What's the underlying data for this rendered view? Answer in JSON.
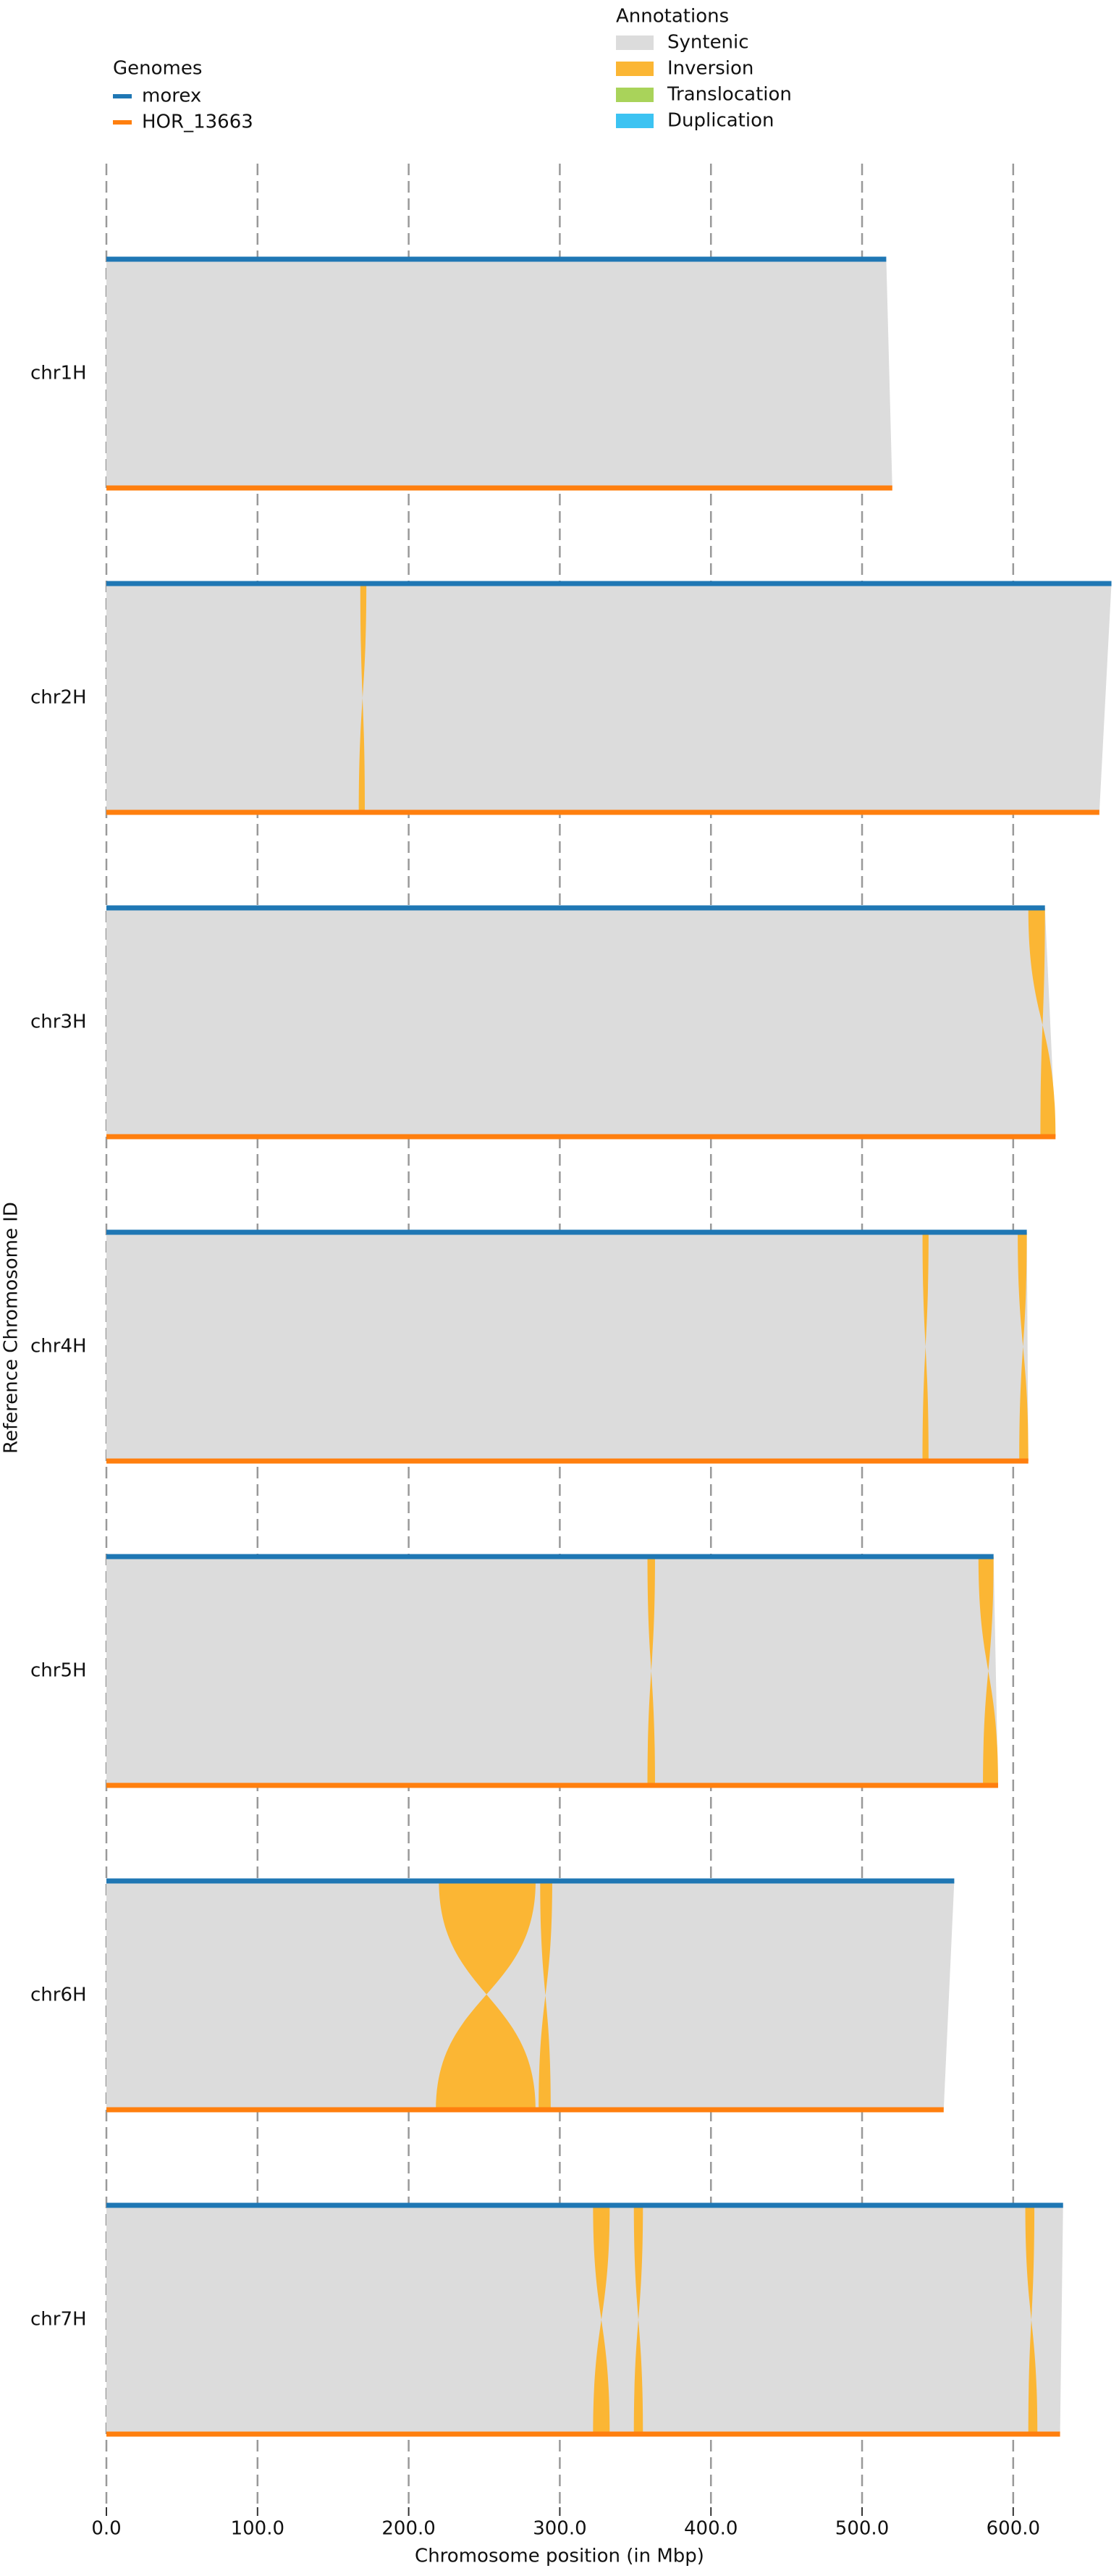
{
  "chart_data": {
    "type": "synteny",
    "xlabel": "Chromosome position (in Mbp)",
    "ylabel": "Reference Chromosome ID",
    "xlim": [
      0,
      670
    ],
    "xticks": [
      {
        "value": 0,
        "label": "0.0"
      },
      {
        "value": 100,
        "label": "100.0"
      },
      {
        "value": 200,
        "label": "200.0"
      },
      {
        "value": 300,
        "label": "300.0"
      },
      {
        "value": 400,
        "label": "400.0"
      },
      {
        "value": 500,
        "label": "500.0"
      },
      {
        "value": 600,
        "label": "600.0"
      }
    ],
    "grid": true,
    "genomes_title": "Genomes",
    "genomes": [
      {
        "name": "morex",
        "color": "#1f77b4"
      },
      {
        "name": "HOR_13663",
        "color": "#ff7f0e"
      }
    ],
    "annotations_title": "Annotations",
    "annotations": [
      {
        "name": "Syntenic",
        "color": "#dcdcdc"
      },
      {
        "name": "Inversion",
        "color": "#fbb634"
      },
      {
        "name": "Translocation",
        "color": "#a9d35a"
      },
      {
        "name": "Duplication",
        "color": "#3cc3f2"
      }
    ],
    "chromosomes": [
      {
        "name": "chr1H",
        "ref_length": 516,
        "qry_length": 520,
        "inversions": []
      },
      {
        "name": "chr2H",
        "ref_length": 665,
        "qry_length": 657,
        "inversions": [
          [
            168,
            172,
            167,
            171
          ]
        ]
      },
      {
        "name": "chr3H",
        "ref_length": 621,
        "qry_length": 628,
        "inversions": [
          [
            610,
            621,
            618,
            628
          ]
        ]
      },
      {
        "name": "chr4H",
        "ref_length": 609,
        "qry_length": 610,
        "inversions": [
          [
            540,
            544,
            540,
            544
          ],
          [
            603,
            609,
            604,
            610
          ]
        ]
      },
      {
        "name": "chr5H",
        "ref_length": 587,
        "qry_length": 590,
        "inversions": [
          [
            358,
            363,
            358,
            363
          ],
          [
            577,
            587,
            580,
            590
          ]
        ]
      },
      {
        "name": "chr6H",
        "ref_length": 561,
        "qry_length": 554,
        "inversions": [
          [
            220,
            284,
            218,
            284
          ],
          [
            287,
            295,
            286,
            294
          ]
        ]
      },
      {
        "name": "chr7H",
        "ref_length": 633,
        "qry_length": 631,
        "inversions": [
          [
            322,
            333,
            322,
            333
          ],
          [
            349,
            355,
            349,
            355
          ],
          [
            608,
            614,
            610,
            616
          ]
        ]
      }
    ]
  }
}
